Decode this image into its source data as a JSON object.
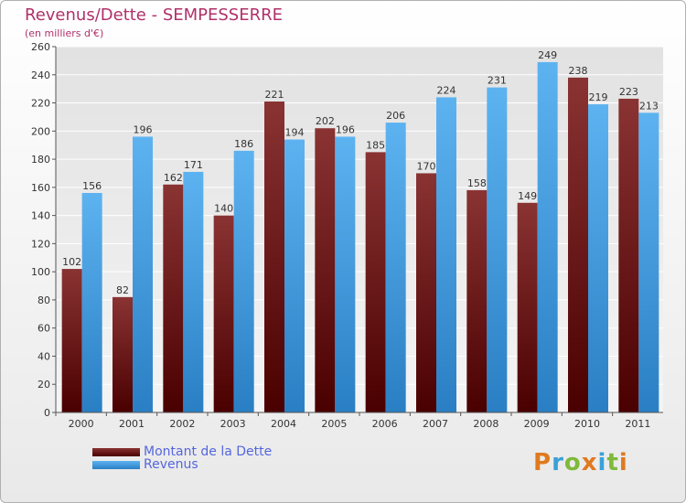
{
  "title": "Revenus/Dette - SEMPESSERRE",
  "subtitle": "(en milliers d'€)",
  "logo": "Proxiti",
  "colors": {
    "dette": "#6e1414",
    "revenus": "#3d9be0",
    "title": "#b0306a",
    "legend_text": "#5566dd"
  },
  "chart_data": {
    "type": "bar",
    "categories": [
      "2000",
      "2001",
      "2002",
      "2003",
      "2004",
      "2005",
      "2006",
      "2007",
      "2008",
      "2009",
      "2010",
      "2011"
    ],
    "series": [
      {
        "name": "Montant de la Dette",
        "values": [
          102,
          82,
          162,
          140,
          221,
          202,
          185,
          170,
          158,
          149,
          238,
          223
        ]
      },
      {
        "name": "Revenus",
        "values": [
          156,
          196,
          171,
          186,
          194,
          196,
          206,
          224,
          231,
          249,
          219,
          213
        ]
      }
    ],
    "y_ticks": [
      "0",
      "20",
      "40",
      "60",
      "80",
      "100",
      "120",
      "140",
      "160",
      "180",
      "200",
      "220",
      "240",
      "260"
    ],
    "ylim": [
      0,
      260
    ],
    "grid": true,
    "legend_position": "bottom-left"
  }
}
